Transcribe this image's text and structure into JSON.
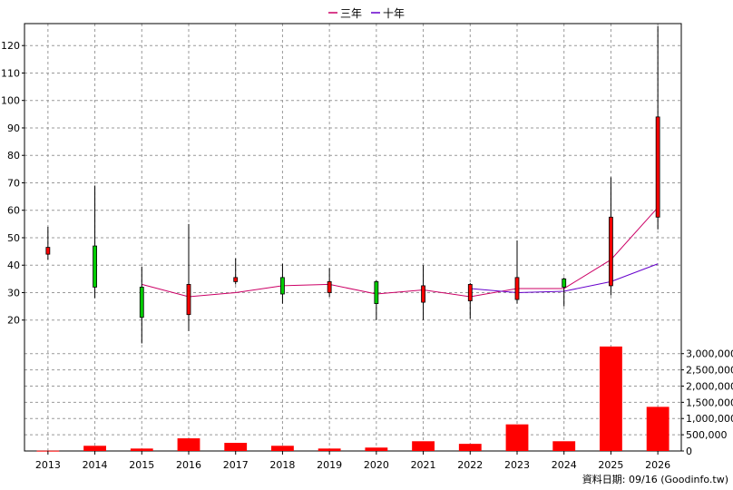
{
  "chart_data": {
    "type": "candlestick",
    "categories": [
      "2013",
      "2014",
      "2015",
      "2016",
      "2017",
      "2018",
      "2019",
      "2020",
      "2021",
      "2022",
      "2023",
      "2024",
      "2025",
      "2026"
    ],
    "candles": [
      {
        "open": 44,
        "close": 46.5,
        "high": 54,
        "low": 42
      },
      {
        "open": 47,
        "close": 32,
        "high": 69,
        "low": 28
      },
      {
        "open": 32,
        "close": 21,
        "high": 39.5,
        "low": 11.5
      },
      {
        "open": 22,
        "close": 33,
        "high": 55,
        "low": 16
      },
      {
        "open": 34,
        "close": 35.5,
        "high": 42.5,
        "low": 33
      },
      {
        "open": 35.5,
        "close": 29.5,
        "high": 40.5,
        "low": 26
      },
      {
        "open": 30,
        "close": 34,
        "high": 39,
        "low": 28.5
      },
      {
        "open": 34,
        "close": 26,
        "high": 34.5,
        "low": 20
      },
      {
        "open": 26.5,
        "close": 32.5,
        "high": 40,
        "low": 20
      },
      {
        "open": 27,
        "close": 33,
        "high": 33.5,
        "low": 20.5
      },
      {
        "open": 27.5,
        "close": 35.5,
        "high": 49,
        "low": 26
      },
      {
        "open": 35,
        "close": 32,
        "high": 35.5,
        "low": 25
      },
      {
        "open": 32.5,
        "close": 57.5,
        "high": 72,
        "low": 29
      },
      {
        "open": 57.5,
        "close": 94,
        "high": 127,
        "low": 53
      }
    ],
    "legend": [
      {
        "name": "三年",
        "color": "#cc0066"
      },
      {
        "name": "十年",
        "color": "#6600cc"
      }
    ],
    "series": [
      {
        "name": "三年",
        "color": "#cc0066",
        "values": [
          null,
          null,
          33,
          28.5,
          30,
          32.5,
          33,
          29.5,
          31,
          28.5,
          31.5,
          31.5,
          42,
          61
        ]
      },
      {
        "name": "十年",
        "color": "#6600cc",
        "values": [
          null,
          null,
          null,
          null,
          null,
          null,
          null,
          null,
          null,
          31.5,
          30,
          30.5,
          34,
          40.5
        ]
      }
    ],
    "volume": {
      "values": [
        10000,
        160000,
        75000,
        390000,
        250000,
        160000,
        75000,
        105000,
        300000,
        220000,
        820000,
        300000,
        3220000,
        1360000
      ],
      "color": "#ff0000"
    },
    "price_axis": {
      "min": 10,
      "max": 128,
      "ticks": [
        20,
        30,
        40,
        50,
        60,
        70,
        80,
        90,
        100,
        110,
        120
      ]
    },
    "volume_axis": {
      "min": 0,
      "max": 3300000,
      "ticks": [
        0,
        500000,
        1000000,
        1500000,
        2000000,
        2500000,
        3000000
      ],
      "tick_labels": [
        "0",
        "500,000",
        "1,000,000",
        "1,500,000",
        "2,000,000",
        "2,500,000",
        "3,000,000"
      ]
    },
    "up_color": "#ff0000",
    "down_color": "#00cc00",
    "grid": true,
    "legend_position": "top-center"
  },
  "footer": {
    "text": "資料日期: 09/16  (Goodinfo.tw)"
  }
}
